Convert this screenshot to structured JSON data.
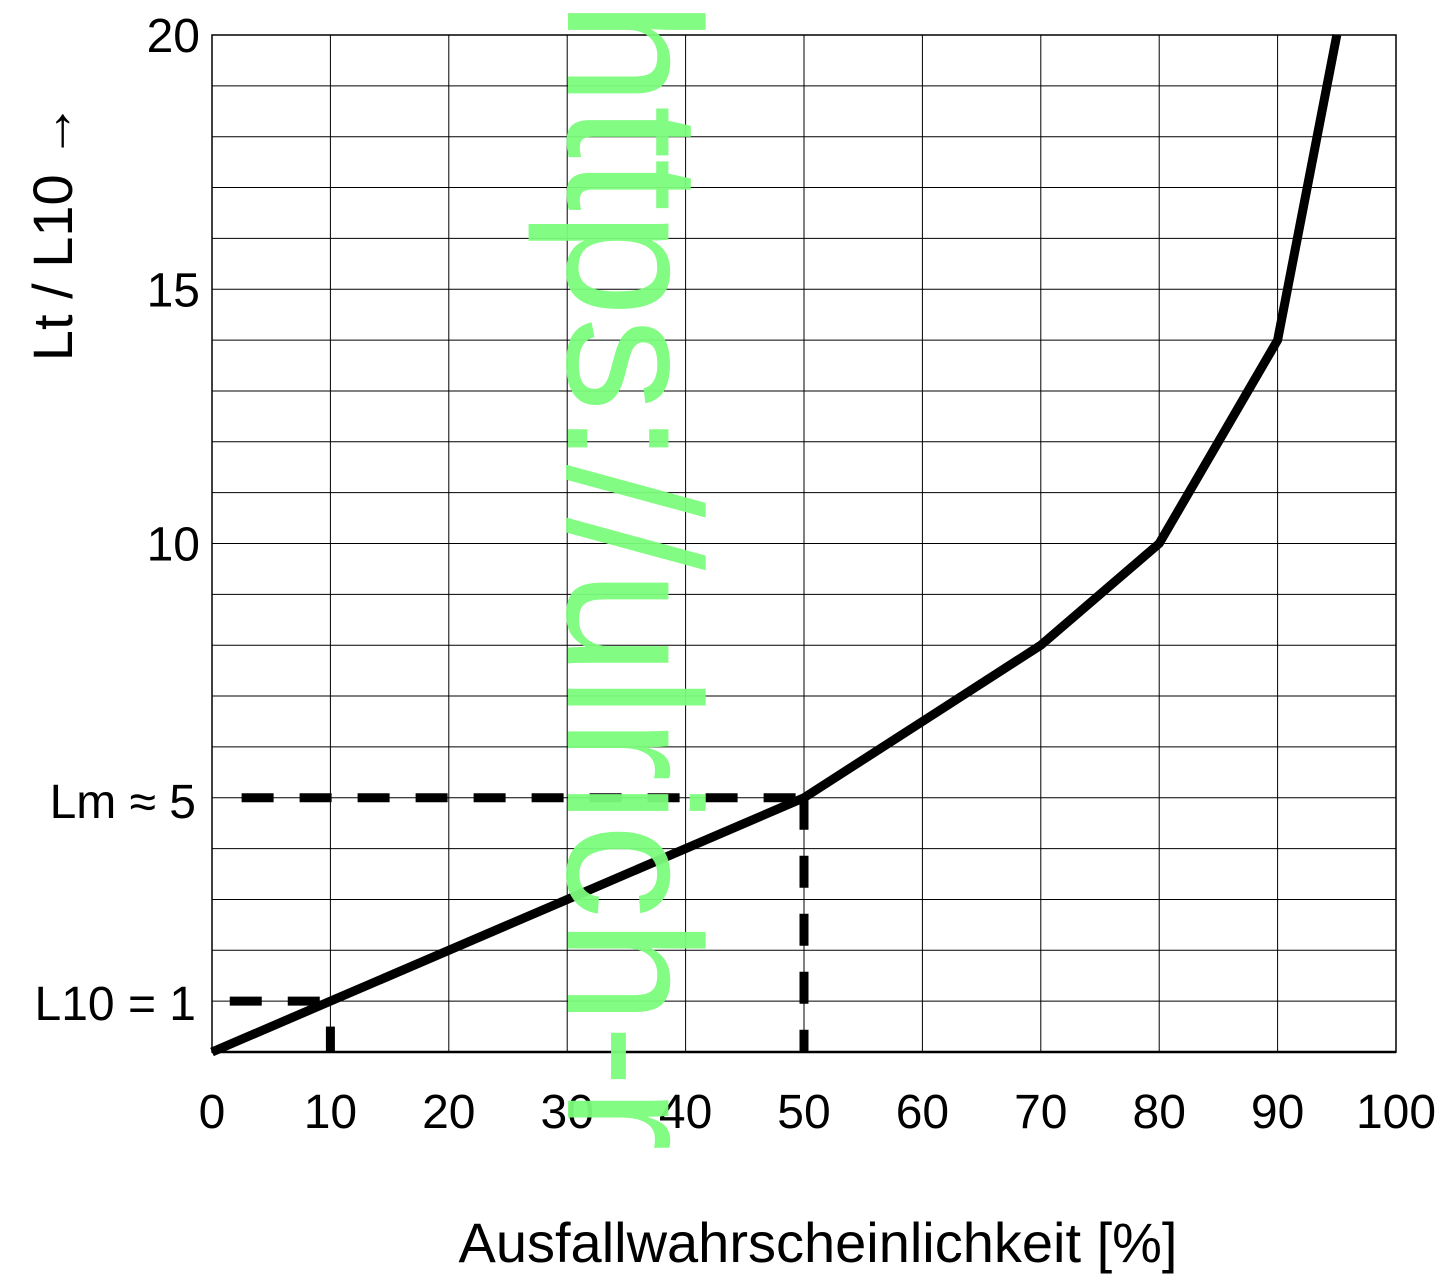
{
  "chart_data": {
    "type": "line",
    "title": "",
    "xlabel": "Ausfallwahrscheinlichkeit [%]",
    "ylabel": "Lt / L10 →",
    "xlim": [
      0,
      100
    ],
    "ylim": [
      0,
      20
    ],
    "grid": true,
    "x_ticks": [
      "0",
      "10",
      "20",
      "30",
      "40",
      "50",
      "60",
      "70",
      "80",
      "90",
      "100"
    ],
    "y_ticks": [
      "10",
      "15",
      "20"
    ],
    "series": [
      {
        "color": "#000000",
        "x": [
          0,
          10,
          30,
          50,
          60,
          70,
          80,
          90,
          95
        ],
        "y": [
          0,
          1,
          3,
          5,
          6.5,
          8,
          10,
          14,
          20
        ]
      }
    ],
    "annotations": [
      {
        "label": "L10 = 1",
        "x": 10,
        "y": 1
      },
      {
        "label": "Lm ≈ 5",
        "x": 50,
        "y": 5
      }
    ]
  },
  "watermark": "https://ulrich-r"
}
